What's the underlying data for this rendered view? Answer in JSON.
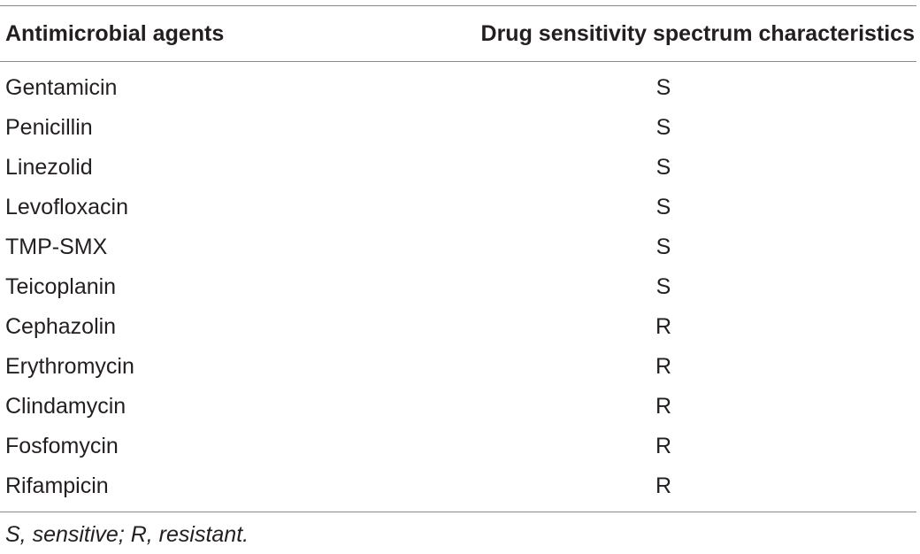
{
  "table": {
    "headers": [
      "Antimicrobial agents",
      "Drug sensitivity spectrum characteristics"
    ],
    "rows": [
      [
        "Gentamicin",
        "S"
      ],
      [
        "Penicillin",
        "S"
      ],
      [
        "Linezolid",
        "S"
      ],
      [
        "Levofloxacin",
        "S"
      ],
      [
        "TMP-SMX",
        "S"
      ],
      [
        "Teicoplanin",
        "S"
      ],
      [
        "Cephazolin",
        "R"
      ],
      [
        "Erythromycin",
        "R"
      ],
      [
        "Clindamycin",
        "R"
      ],
      [
        "Fosfomycin",
        "R"
      ],
      [
        "Rifampicin",
        "R"
      ]
    ],
    "footnote": "S, sensitive; R, resistant."
  }
}
